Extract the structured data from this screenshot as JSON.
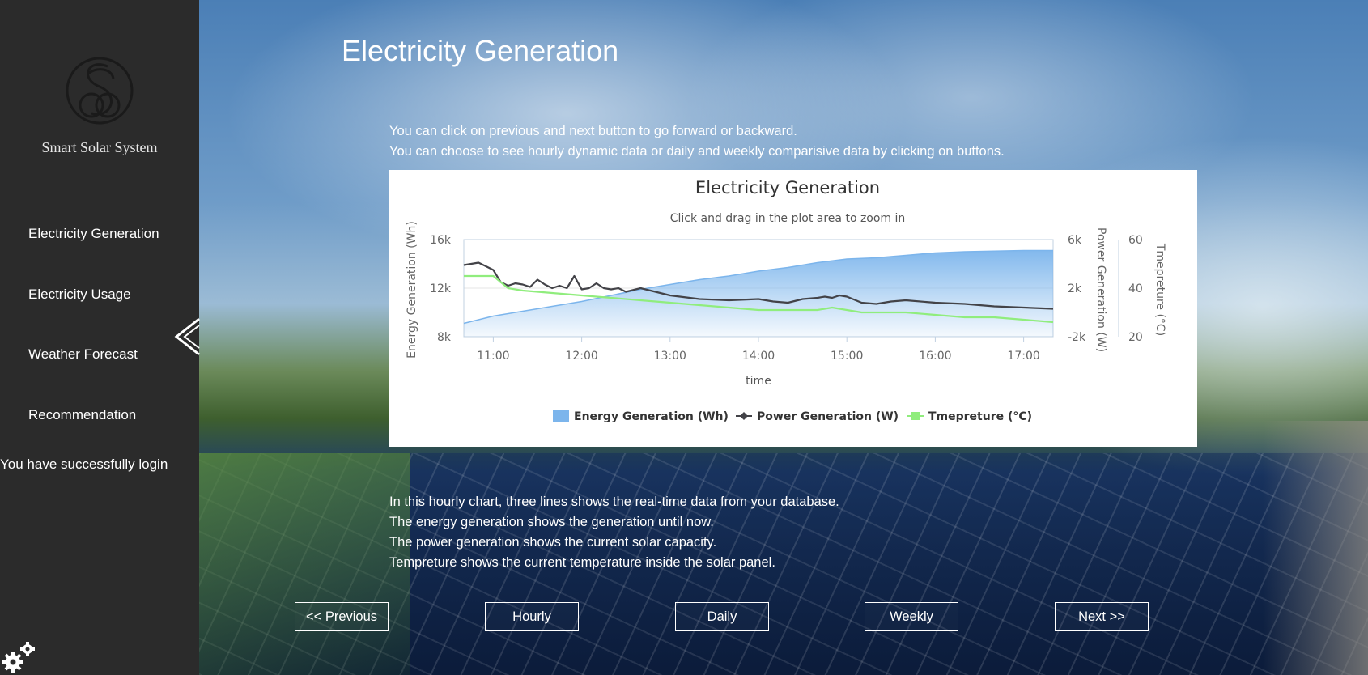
{
  "sidebar": {
    "brand": "Smart Solar System",
    "nav": [
      {
        "label": "Electricity Generation"
      },
      {
        "label": "Electricity Usage"
      },
      {
        "label": "Weather Forecast"
      },
      {
        "label": "Recommendation"
      }
    ],
    "status": "You have successfully login"
  },
  "main": {
    "title": "Electricity Generation",
    "intro": [
      "You can click on previous and next button to go forward or backward.",
      "You can choose to see hourly dynamic data or daily and weekly comparisive data by clicking on buttons."
    ],
    "explanation": [
      "In this hourly chart, three lines shows the real-time data from your database.",
      "The energy generation shows the generation until now.",
      "The power generation shows the current solar capacity.",
      "Tempreture shows the current temperature inside the solar panel."
    ],
    "buttons": {
      "previous": "<< Previous",
      "hourly": "Hourly",
      "daily": "Daily",
      "weekly": "Weekly",
      "next": "Next >>"
    }
  },
  "colors": {
    "sidebar_bg": "#2b2b2b",
    "energy_area": "#7cb5ec",
    "power_line": "#434348",
    "temperature_line": "#90ed7d"
  },
  "icons": [
    "smart-solar-logo-icon",
    "chevron-left-icon",
    "gear-icon"
  ],
  "chart_data": {
    "type": "line",
    "title": "Electricity Generation",
    "subtitle": "Click and drag in the plot area to zoom in",
    "xlabel": "time",
    "x_ticks": [
      "11:00",
      "12:00",
      "13:00",
      "14:00",
      "15:00",
      "16:00",
      "17:00"
    ],
    "legend_position": "bottom",
    "grid": true,
    "axes": [
      {
        "id": "energy",
        "title": "Energy Generation (Wh)",
        "side": "left",
        "min": 8000,
        "max": 16000,
        "ticks": [
          "8k",
          "12k",
          "16k"
        ]
      },
      {
        "id": "power",
        "title": "Power Generation (W)",
        "side": "right",
        "min": -2000,
        "max": 6000,
        "ticks": [
          "-2k",
          "2k",
          "6k"
        ]
      },
      {
        "id": "temp",
        "title": "Tmepreture (°C)",
        "side": "right",
        "min": 20,
        "max": 60,
        "ticks": [
          "20",
          "40",
          "60"
        ]
      }
    ],
    "series": [
      {
        "name": "Energy Generation (Wh)",
        "type": "area",
        "axis": "energy",
        "x": [
          "10:40",
          "11:00",
          "11:20",
          "11:40",
          "12:00",
          "12:20",
          "12:40",
          "13:00",
          "13:20",
          "13:40",
          "14:00",
          "14:20",
          "14:40",
          "15:00",
          "15:20",
          "15:40",
          "16:00",
          "16:20",
          "16:40",
          "17:00",
          "17:20"
        ],
        "values": [
          9100,
          9700,
          10100,
          10500,
          10900,
          11400,
          11900,
          12300,
          12700,
          13000,
          13400,
          13700,
          14100,
          14400,
          14500,
          14700,
          14900,
          15000,
          15050,
          15100,
          15100
        ]
      },
      {
        "name": "Power Generation (W)",
        "type": "line",
        "axis": "power",
        "x": [
          "10:40",
          "10:50",
          "11:00",
          "11:05",
          "11:10",
          "11:15",
          "11:20",
          "11:25",
          "11:30",
          "11:35",
          "11:40",
          "11:45",
          "11:50",
          "11:55",
          "12:00",
          "12:05",
          "12:10",
          "12:15",
          "12:20",
          "12:25",
          "12:30",
          "12:40",
          "13:00",
          "13:20",
          "13:40",
          "14:00",
          "14:10",
          "14:20",
          "14:30",
          "14:40",
          "14:45",
          "14:50",
          "14:55",
          "15:00",
          "15:10",
          "15:20",
          "15:30",
          "15:40",
          "16:00",
          "16:20",
          "16:40",
          "17:00",
          "17:20"
        ],
        "values": [
          3900,
          4100,
          3500,
          2500,
          2200,
          2400,
          2300,
          2100,
          2700,
          2300,
          2000,
          2200,
          2000,
          3000,
          1900,
          2000,
          2400,
          2000,
          1900,
          2000,
          1700,
          2000,
          1400,
          1100,
          1000,
          1100,
          900,
          800,
          1100,
          1200,
          1300,
          1200,
          1400,
          1300,
          800,
          700,
          900,
          1000,
          800,
          700,
          500,
          400,
          300
        ]
      },
      {
        "name": "Tmepreture (°C)",
        "type": "line",
        "axis": "temp",
        "x": [
          "10:40",
          "11:00",
          "11:10",
          "11:20",
          "11:40",
          "12:00",
          "12:20",
          "12:40",
          "13:00",
          "13:20",
          "13:40",
          "14:00",
          "14:20",
          "14:40",
          "14:50",
          "15:00",
          "15:10",
          "15:20",
          "15:40",
          "16:00",
          "16:20",
          "16:40",
          "17:00",
          "17:20"
        ],
        "values": [
          45,
          45,
          40,
          39,
          38,
          37,
          36,
          35,
          34,
          33,
          32,
          31,
          31,
          31,
          32,
          31,
          30,
          30,
          30,
          29,
          28,
          28,
          27,
          26
        ]
      }
    ]
  }
}
